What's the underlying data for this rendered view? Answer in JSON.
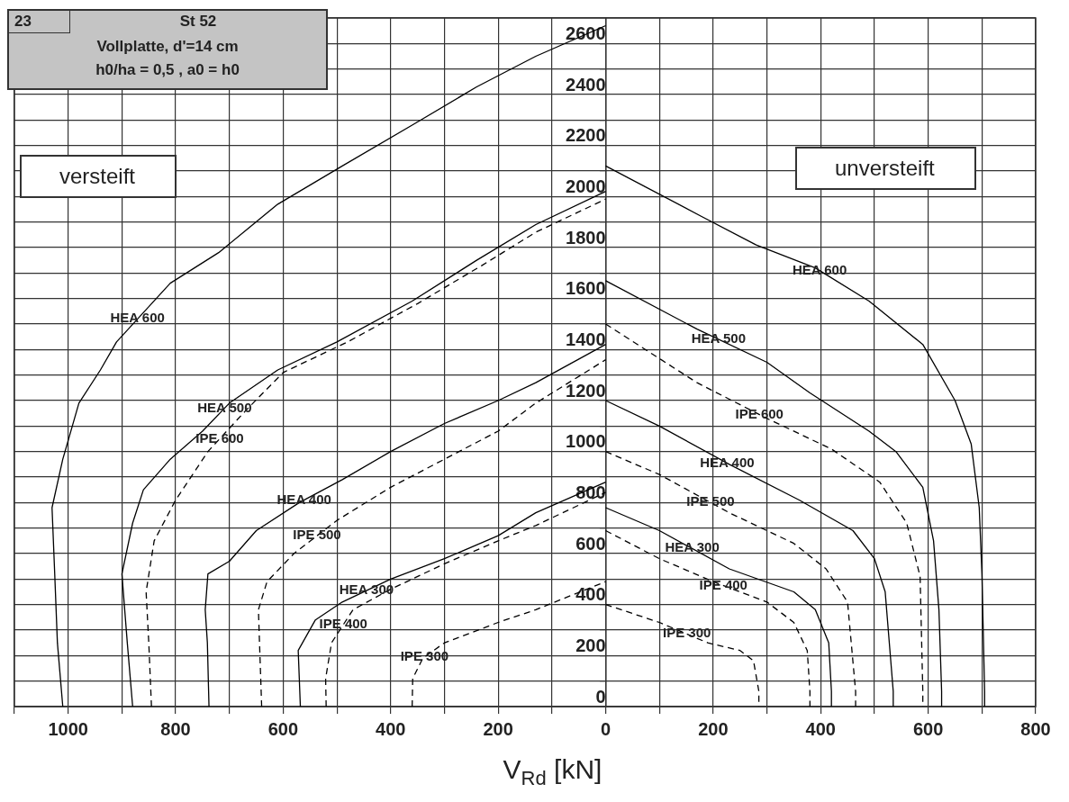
{
  "chart_data": {
    "type": "line",
    "title": "St 52",
    "subtitle": "Vollplatte, d'=14 cm\nh0/ha = 0,5 , a0 = h0",
    "xlabel": "V$_{Rd}$ [kN]",
    "xlim": [
      -1100,
      800
    ],
    "ylim": [
      0,
      2700
    ],
    "xticks": [
      {
        "value": -1100,
        "label": null
      },
      {
        "value": -1000,
        "label": "1000"
      },
      {
        "value": -900,
        "label": null
      },
      {
        "value": -800,
        "label": "800"
      },
      {
        "value": -700,
        "label": null
      },
      {
        "value": -600,
        "label": "600"
      },
      {
        "value": -500,
        "label": null
      },
      {
        "value": -400,
        "label": "400"
      },
      {
        "value": -300,
        "label": null
      },
      {
        "value": -200,
        "label": "200"
      },
      {
        "value": -100,
        "label": null
      },
      0,
      {
        "value": 100,
        "label": null
      },
      200,
      {
        "value": 300,
        "label": null
      },
      400,
      {
        "value": 500,
        "label": null
      },
      600,
      {
        "value": 700,
        "label": null
      },
      800
    ],
    "yticks": [
      0,
      {
        "value": 100,
        "label": null
      },
      200,
      {
        "value": 300,
        "label": null
      },
      400,
      {
        "value": 500,
        "label": null
      },
      600,
      {
        "value": 700,
        "label": null
      },
      800,
      {
        "value": 900,
        "label": null
      },
      1000,
      {
        "value": 1100,
        "label": null
      },
      1200,
      {
        "value": 1300,
        "label": null
      },
      1400,
      {
        "value": 1500,
        "label": null
      },
      1600,
      {
        "value": 1700,
        "label": null
      },
      1800,
      {
        "value": 1900,
        "label": null
      },
      2000,
      {
        "value": 2100,
        "label": null
      },
      2200,
      {
        "value": 2300,
        "label": null
      },
      2400,
      {
        "value": 2500,
        "label": null
      },
      2600,
      {
        "value": 2700,
        "label": null
      }
    ],
    "grid": true,
    "legend": false,
    "marker": "none",
    "series": [
      {
        "color": "#000000",
        "line_style": "solid",
        "x": [
          -1010,
          -1020,
          -1025,
          -1030,
          -1010,
          -980,
          -940,
          -910,
          -810,
          -720,
          -610,
          -490,
          -360,
          -240,
          -130,
          0
        ],
        "values": [
          0,
          250,
          520,
          780,
          970,
          1190,
          1320,
          1430,
          1660,
          1780,
          1970,
          2120,
          2280,
          2430,
          2550,
          2670
        ]
      },
      {
        "color": "#000000",
        "line_style": "solid",
        "x": [
          -880,
          -890,
          -900,
          -880,
          -860,
          -810,
          -750,
          -700,
          -610,
          -500,
          -360,
          -240,
          -130,
          0
        ],
        "values": [
          0,
          250,
          520,
          720,
          850,
          970,
          1080,
          1190,
          1320,
          1430,
          1590,
          1750,
          1890,
          2020
        ]
      },
      {
        "color": "#000000",
        "line_style": "dashed",
        "x": [
          -845,
          -850,
          -855,
          -840,
          -800,
          -740,
          -670,
          -600,
          -480,
          -350,
          -230,
          -130,
          0
        ],
        "values": [
          0,
          250,
          450,
          650,
          810,
          1000,
          1160,
          1310,
          1430,
          1580,
          1730,
          1860,
          1990
        ]
      },
      {
        "color": "#000000",
        "line_style": "solid",
        "x": [
          -738,
          -741,
          -745,
          -740,
          -700,
          -650,
          -570,
          -490,
          -400,
          -300,
          -200,
          -130,
          0
        ],
        "values": [
          0,
          250,
          380,
          520,
          570,
          690,
          800,
          890,
          1000,
          1110,
          1200,
          1270,
          1420
        ]
      },
      {
        "color": "#000000",
        "line_style": "dashed",
        "x": [
          -640,
          -644,
          -646,
          -630,
          -580,
          -500,
          -400,
          -300,
          -200,
          -130,
          0
        ],
        "values": [
          0,
          250,
          380,
          490,
          600,
          730,
          860,
          970,
          1080,
          1190,
          1360
        ]
      },
      {
        "color": "#000000",
        "line_style": "solid",
        "x": [
          -568,
          -570,
          -572,
          -540,
          -490,
          -400,
          -300,
          -200,
          -130,
          0
        ],
        "values": [
          0,
          110,
          220,
          340,
          410,
          500,
          580,
          670,
          760,
          880
        ]
      },
      {
        "color": "#000000",
        "line_style": "dashed",
        "x": [
          -520,
          -521,
          -510,
          -470,
          -400,
          -300,
          -200,
          -130,
          0
        ],
        "values": [
          0,
          110,
          250,
          380,
          460,
          560,
          650,
          710,
          840
        ]
      },
      {
        "color": "#000000",
        "line_style": "dashed",
        "x": [
          -360,
          -359,
          -340,
          -300,
          -200,
          -130,
          0
        ],
        "values": [
          0,
          110,
          190,
          250,
          330,
          380,
          490
        ]
      },
      {
        "color": "#000000",
        "line_style": "solid",
        "x": [
          0,
          180,
          280,
          390,
          490,
          590,
          650,
          680,
          695,
          700,
          705,
          705
        ],
        "values": [
          2120,
          1920,
          1810,
          1720,
          1590,
          1420,
          1200,
          1030,
          780,
          520,
          60,
          0
        ]
      },
      {
        "color": "#000000",
        "line_style": "solid",
        "x": [
          0,
          170,
          300,
          380,
          490,
          540,
          590,
          610,
          620,
          625,
          625
        ],
        "values": [
          1670,
          1480,
          1350,
          1230,
          1080,
          1000,
          860,
          650,
          380,
          60,
          0
        ]
      },
      {
        "color": "#000000",
        "line_style": "dashed",
        "x": [
          0,
          170,
          300,
          420,
          510,
          560,
          585,
          590,
          590
        ],
        "values": [
          1500,
          1270,
          1130,
          1010,
          880,
          720,
          510,
          60,
          0
        ]
      },
      {
        "color": "#000000",
        "line_style": "solid",
        "x": [
          0,
          100,
          230,
          360,
          460,
          500,
          520,
          535,
          535
        ],
        "values": [
          1200,
          1100,
          950,
          810,
          690,
          580,
          450,
          60,
          0
        ]
      },
      {
        "color": "#000000",
        "line_style": "dashed",
        "x": [
          0,
          100,
          230,
          350,
          410,
          450,
          465,
          465
        ],
        "values": [
          1000,
          910,
          760,
          640,
          540,
          410,
          60,
          0
        ]
      },
      {
        "color": "#000000",
        "line_style": "solid",
        "x": [
          0,
          100,
          230,
          350,
          390,
          415,
          420,
          420
        ],
        "values": [
          780,
          690,
          540,
          450,
          380,
          250,
          60,
          0
        ]
      },
      {
        "color": "#000000",
        "line_style": "dashed",
        "x": [
          0,
          100,
          200,
          300,
          350,
          375,
          380,
          380
        ],
        "values": [
          690,
          580,
          490,
          410,
          330,
          220,
          60,
          0
        ]
      },
      {
        "color": "#000000",
        "line_style": "dashed",
        "x": [
          0,
          100,
          190,
          250,
          275,
          285,
          285
        ],
        "values": [
          400,
          330,
          250,
          220,
          180,
          60,
          0
        ]
      }
    ],
    "annotations": [
      "23",
      "versteift",
      "unversteift",
      {
        "text": "HEA 600",
        "x": -871,
        "y": 1520
      },
      {
        "text": "HEA 500",
        "x": -709,
        "y": 1170
      },
      {
        "text": "IPE 600",
        "x": -718,
        "y": 1050
      },
      {
        "text": "HEA 400",
        "x": -561,
        "y": 810
      },
      {
        "text": "IPE 500",
        "x": -537,
        "y": 670
      },
      {
        "text": "HEA 300",
        "x": -445,
        "y": 455
      },
      {
        "text": "IPE 400",
        "x": -488,
        "y": 320
      },
      {
        "text": "IPE 300",
        "x": -337,
        "y": 195
      },
      {
        "text": "HEA 600",
        "x": 398,
        "y": 1710
      },
      {
        "text": "HEA 500",
        "x": 210,
        "y": 1440
      },
      {
        "text": "IPE 600",
        "x": 286,
        "y": 1145
      },
      {
        "text": "HEA 400",
        "x": 226,
        "y": 955
      },
      {
        "text": "IPE 500",
        "x": 195,
        "y": 800
      },
      {
        "text": "HEA 300",
        "x": 161,
        "y": 620
      },
      {
        "text": "IPE 400",
        "x": 219,
        "y": 475
      },
      {
        "text": "IPE 300",
        "x": 151,
        "y": 285
      }
    ]
  }
}
